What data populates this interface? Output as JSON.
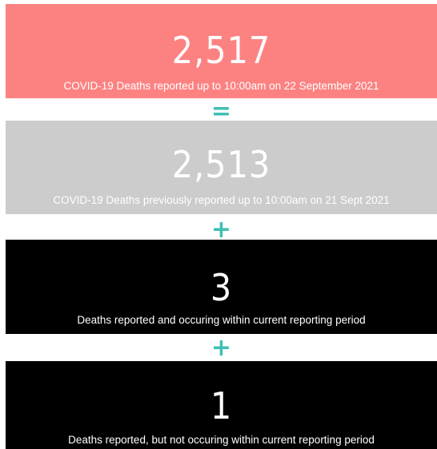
{
  "cards": [
    {
      "value": "2,517",
      "caption": "COVID-19 Deaths reported up to 10:00am on 22 September 2021"
    },
    {
      "value": "2,513",
      "caption": "COVID-19 Deaths previously reported up to 10:00am on 21 Sept 2021"
    },
    {
      "value": "3",
      "caption": "Deaths reported and occuring within current reporting period"
    },
    {
      "value": "1",
      "caption": "Deaths reported, but not occuring within current reporting period"
    }
  ],
  "operators": [
    "=",
    "+",
    "+"
  ]
}
